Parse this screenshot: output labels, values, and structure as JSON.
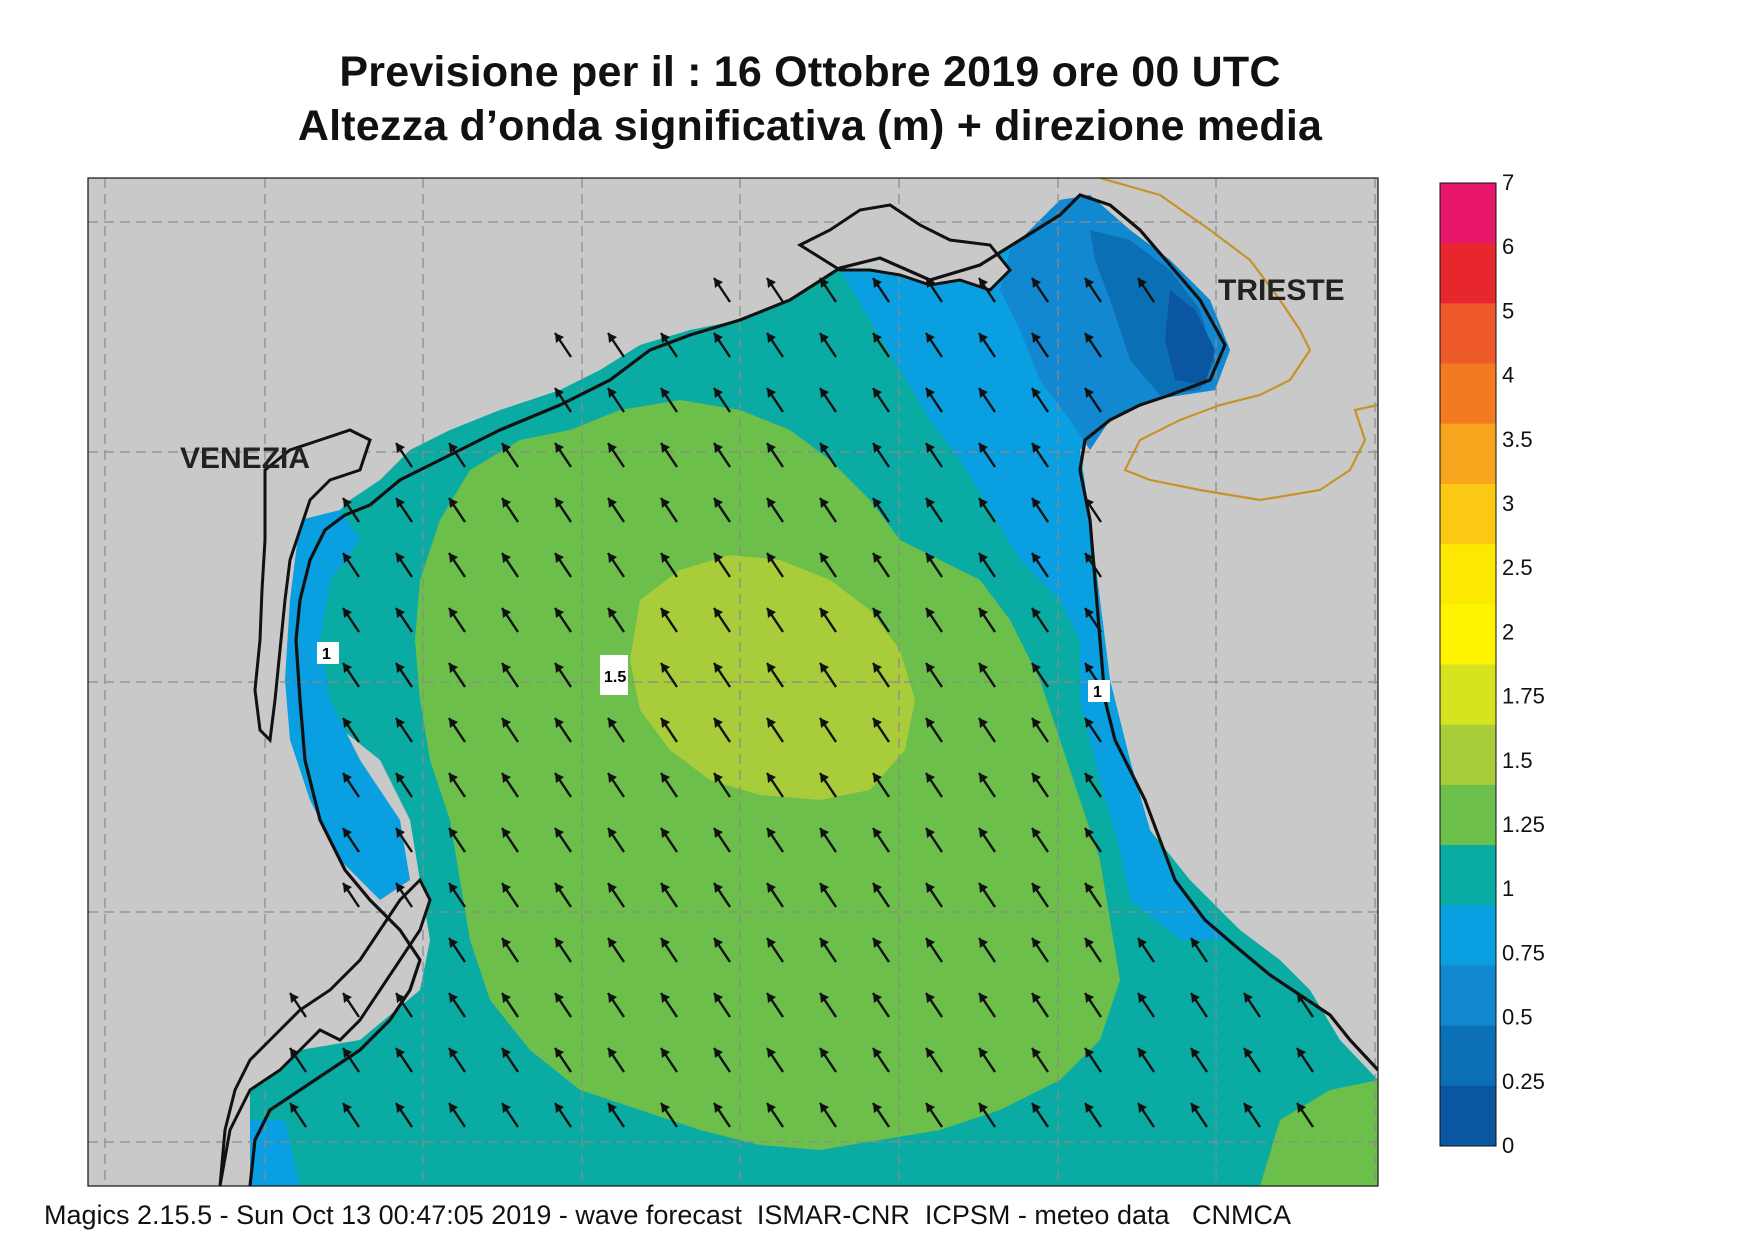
{
  "title": {
    "line1": "Previsione per il  :  16  Ottobre  2019   ore 00 UTC",
    "line2": "Altezza d’onda significativa (m) + direzione media"
  },
  "footer": "Magics 2.15.5 - Sun Oct 13 00:47:05 2019 - wave forecast  ISMAR-CNR  ICPSM - meteo data   CNMCA",
  "places": {
    "venezia": "VENEZIA",
    "trieste": "TRIESTE"
  },
  "contour_labels": [
    "1",
    "1.5",
    "1"
  ],
  "colorbar": {
    "labels": [
      "7",
      "6",
      "5",
      "4",
      "3.5",
      "3",
      "2.5",
      "2",
      "1.75",
      "1.5",
      "1.25",
      "1",
      "0.75",
      "0.5",
      "0.25",
      "0"
    ],
    "colors": [
      "#e8176b",
      "#e8262d",
      "#ee5a2a",
      "#f47a22",
      "#f7a51d",
      "#fbc814",
      "#fce800",
      "#fff500",
      "#d6e31f",
      "#a8cc3a",
      "#6cbf4b",
      "#0aaba3",
      "#0a9fe0",
      "#1288d0",
      "#0b6fb6",
      "#0a56a0"
    ]
  },
  "map_colors": {
    "land": "#c9c9c9",
    "coast": "#111111",
    "border": "#c8922a",
    "arrow": "#111111",
    "grid": "#8a8a8a"
  },
  "wave_direction": "north-west"
}
